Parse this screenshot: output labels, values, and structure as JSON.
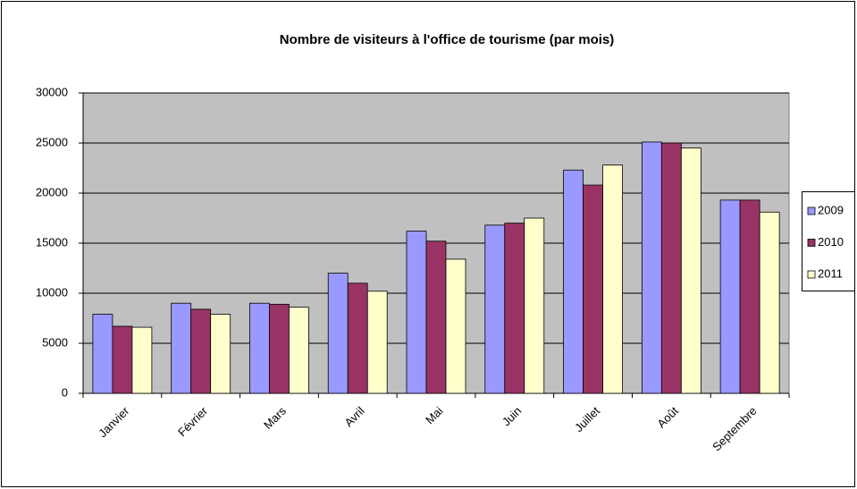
{
  "chart_data": {
    "type": "bar",
    "title": "Nombre de visiteurs à l'office de tourisme (par mois)",
    "categories": [
      "Janvier",
      "Février",
      "Mars",
      "Avril",
      "Mai",
      "Juin",
      "Juillet",
      "Août",
      "Septembre"
    ],
    "series": [
      {
        "name": "2009",
        "color": "#9999ff",
        "values": [
          7900,
          9000,
          9000,
          12000,
          16200,
          16800,
          22300,
          25100,
          19300
        ]
      },
      {
        "name": "2010",
        "color": "#993366",
        "values": [
          6700,
          8400,
          8900,
          11000,
          15200,
          17000,
          20800,
          25000,
          19300
        ]
      },
      {
        "name": "2011",
        "color": "#ffffcc",
        "values": [
          6600,
          7900,
          8600,
          10200,
          13400,
          17500,
          22800,
          24500,
          18100
        ]
      }
    ],
    "ylim": [
      0,
      30000
    ],
    "yticks": [
      0,
      5000,
      10000,
      15000,
      20000,
      25000,
      30000
    ],
    "grid": true,
    "legend": "right"
  }
}
